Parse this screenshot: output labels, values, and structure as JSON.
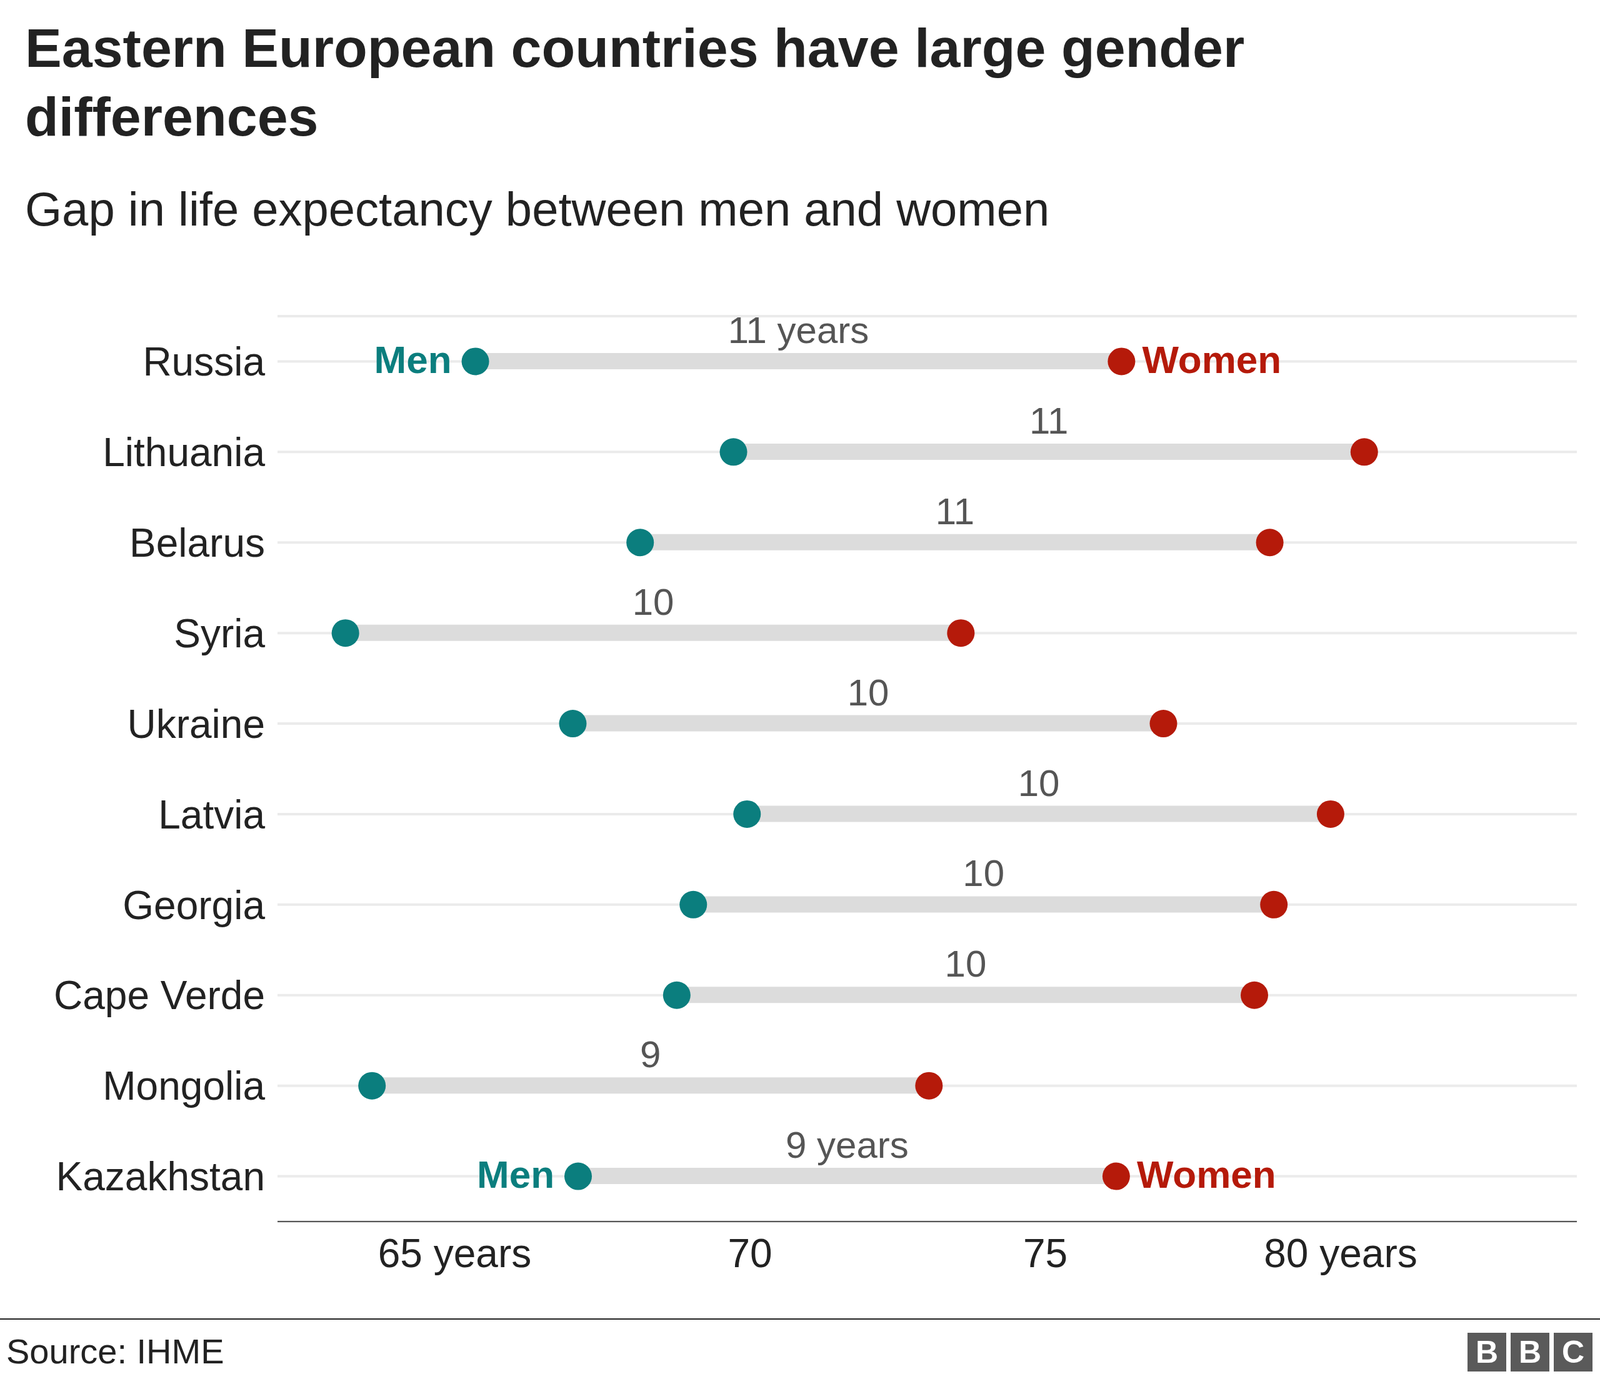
{
  "chart_data": {
    "type": "dumbbell",
    "title": "Eastern European countries have large gender differences",
    "subtitle": "Gap in life expectancy between men and women",
    "orientation": "horizontal",
    "categories": [
      "Russia",
      "Lithuania",
      "Belarus",
      "Syria",
      "Ukraine",
      "Latvia",
      "Georgia",
      "Cape Verde",
      "Mongolia",
      "Kazakhstan"
    ],
    "series": [
      {
        "name": "Men",
        "color": "#0b7e7e",
        "values": [
          65.35,
          69.72,
          68.14,
          63.15,
          67.0,
          69.95,
          69.04,
          68.76,
          63.6,
          67.09
        ]
      },
      {
        "name": "Women",
        "color": "#b51a0a",
        "values": [
          76.29,
          80.4,
          78.8,
          73.57,
          77.0,
          79.83,
          78.87,
          78.54,
          73.03,
          76.2
        ]
      }
    ],
    "gap_labels": [
      "11 years",
      "11",
      "11",
      "10",
      "10",
      "10",
      "10",
      "10",
      "9",
      "9 years"
    ],
    "xlim": [
      62,
      84
    ],
    "xticks": [
      {
        "value": 65,
        "label": "65 years"
      },
      70,
      75,
      {
        "value": 80,
        "label": "80 years"
      }
    ],
    "grid": true,
    "source": "Source: IHME",
    "logo": "BBC"
  }
}
